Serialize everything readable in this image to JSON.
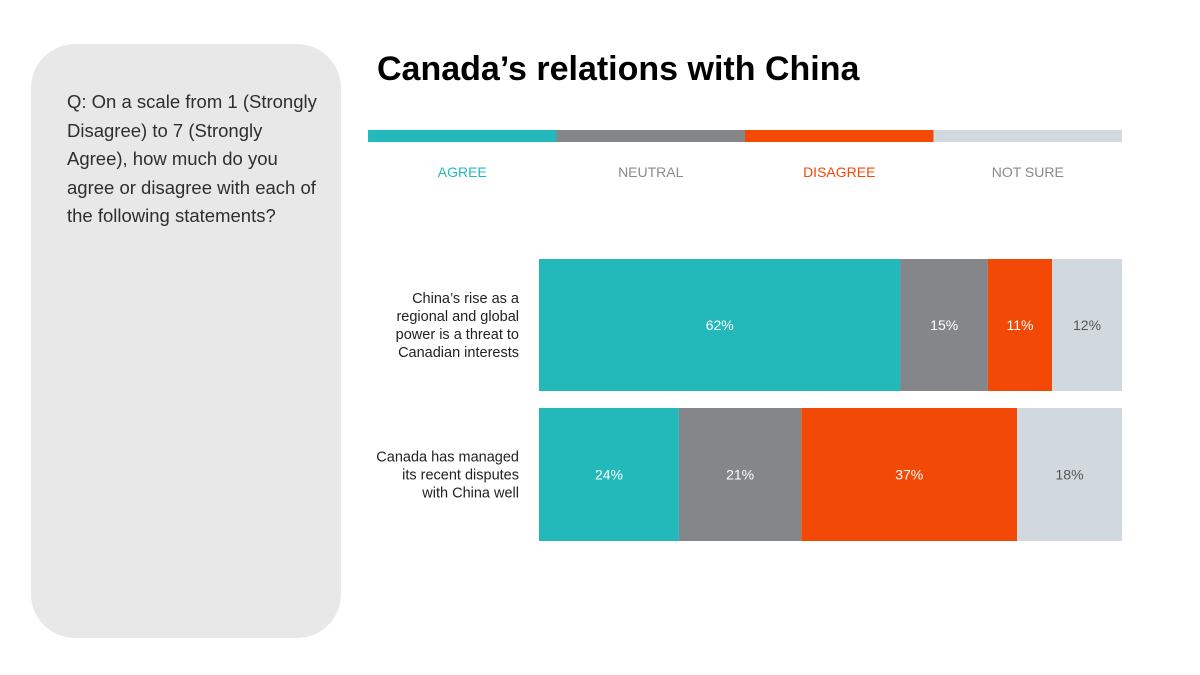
{
  "question": {
    "text": "Q: On a scale from 1 (Strongly Disagree) to 7 (Strongly Agree), how much do you agree or disagree with each of the following statements?"
  },
  "chart_data": {
    "type": "bar",
    "orientation": "horizontal",
    "stacked": true,
    "title": "Canada’s relations with China",
    "legend_position": "top",
    "grid": false,
    "xlim": [
      0,
      100
    ],
    "series": [
      {
        "name": "AGREE",
        "color": "#23b9bb",
        "text_color": "#ffffff",
        "values": [
          62,
          24
        ]
      },
      {
        "name": "NEUTRAL",
        "color": "#848689",
        "text_color": "#ffffff",
        "values": [
          15,
          21
        ]
      },
      {
        "name": "DISAGREE",
        "color": "#f24a06",
        "text_color": "#ffffff",
        "values": [
          11,
          37
        ]
      },
      {
        "name": "NOT SURE",
        "color": "#d2d9de",
        "text_color": "#555555",
        "values": [
          12,
          18
        ]
      }
    ],
    "categories": [
      [
        "China’s rise as a",
        "regional and global",
        "power is a threat to",
        "Canadian interests"
      ],
      [
        "Canada has managed",
        "its recent disputes",
        "with China well"
      ]
    ],
    "value_suffix": "%"
  }
}
